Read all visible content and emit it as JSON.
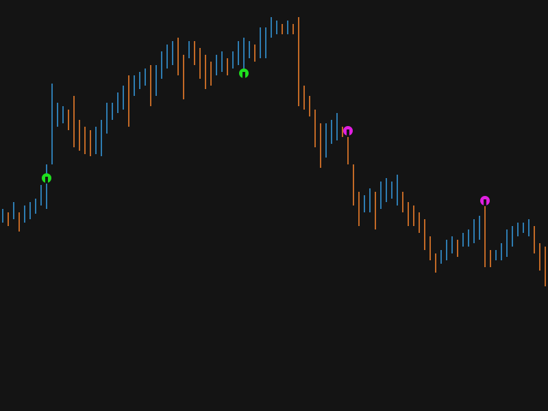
{
  "chart_data": {
    "type": "range_bar",
    "high": [
      295,
      290,
      305,
      290,
      300,
      305,
      310,
      330,
      360,
      478,
      450,
      445,
      440,
      460,
      425,
      415,
      410,
      415,
      425,
      450,
      450,
      465,
      475,
      490,
      490,
      495,
      500,
      505,
      505,
      525,
      535,
      540,
      545,
      520,
      540,
      540,
      530,
      520,
      510,
      520,
      525,
      515,
      525,
      540,
      545,
      540,
      535,
      560,
      560,
      575,
      570,
      565,
      570,
      565,
      575,
      475,
      460,
      440,
      420,
      420,
      425,
      435,
      415,
      400,
      360,
      320,
      315,
      325,
      320,
      335,
      340,
      335,
      345,
      320,
      305,
      300,
      290,
      280,
      255,
      230,
      235,
      250,
      255,
      250,
      260,
      265,
      280,
      285,
      300,
      235,
      235,
      245,
      265,
      270,
      275,
      275,
      280,
      270,
      245,
      240
    ],
    "low": [
      275,
      270,
      280,
      262,
      275,
      280,
      288,
      300,
      295,
      360,
      415,
      420,
      410,
      385,
      380,
      375,
      372,
      375,
      372,
      405,
      425,
      435,
      440,
      415,
      460,
      470,
      475,
      445,
      460,
      485,
      500,
      505,
      490,
      455,
      515,
      505,
      485,
      470,
      475,
      490,
      495,
      490,
      500,
      505,
      500,
      515,
      510,
      515,
      515,
      545,
      550,
      550,
      550,
      550,
      445,
      440,
      430,
      385,
      355,
      370,
      390,
      395,
      400,
      360,
      300,
      270,
      290,
      290,
      265,
      295,
      305,
      310,
      300,
      290,
      270,
      270,
      260,
      235,
      220,
      202,
      215,
      220,
      230,
      225,
      240,
      240,
      245,
      250,
      210,
      210,
      220,
      220,
      225,
      240,
      255,
      260,
      255,
      230,
      205,
      182
    ],
    "up_color": "#2e7db3",
    "down_color": "#c46a26",
    "xlim": [
      -0.5,
      99.5
    ],
    "ylim": [
      0,
      600
    ],
    "markers": [
      {
        "x": 8,
        "value": 340,
        "color": "#1fe01f"
      },
      {
        "x": 44,
        "value": 493,
        "color": "#1fe01f"
      },
      {
        "x": 63,
        "value": 409,
        "color": "#e01fe0"
      },
      {
        "x": 88,
        "value": 307,
        "color": "#e01fe0"
      }
    ]
  }
}
